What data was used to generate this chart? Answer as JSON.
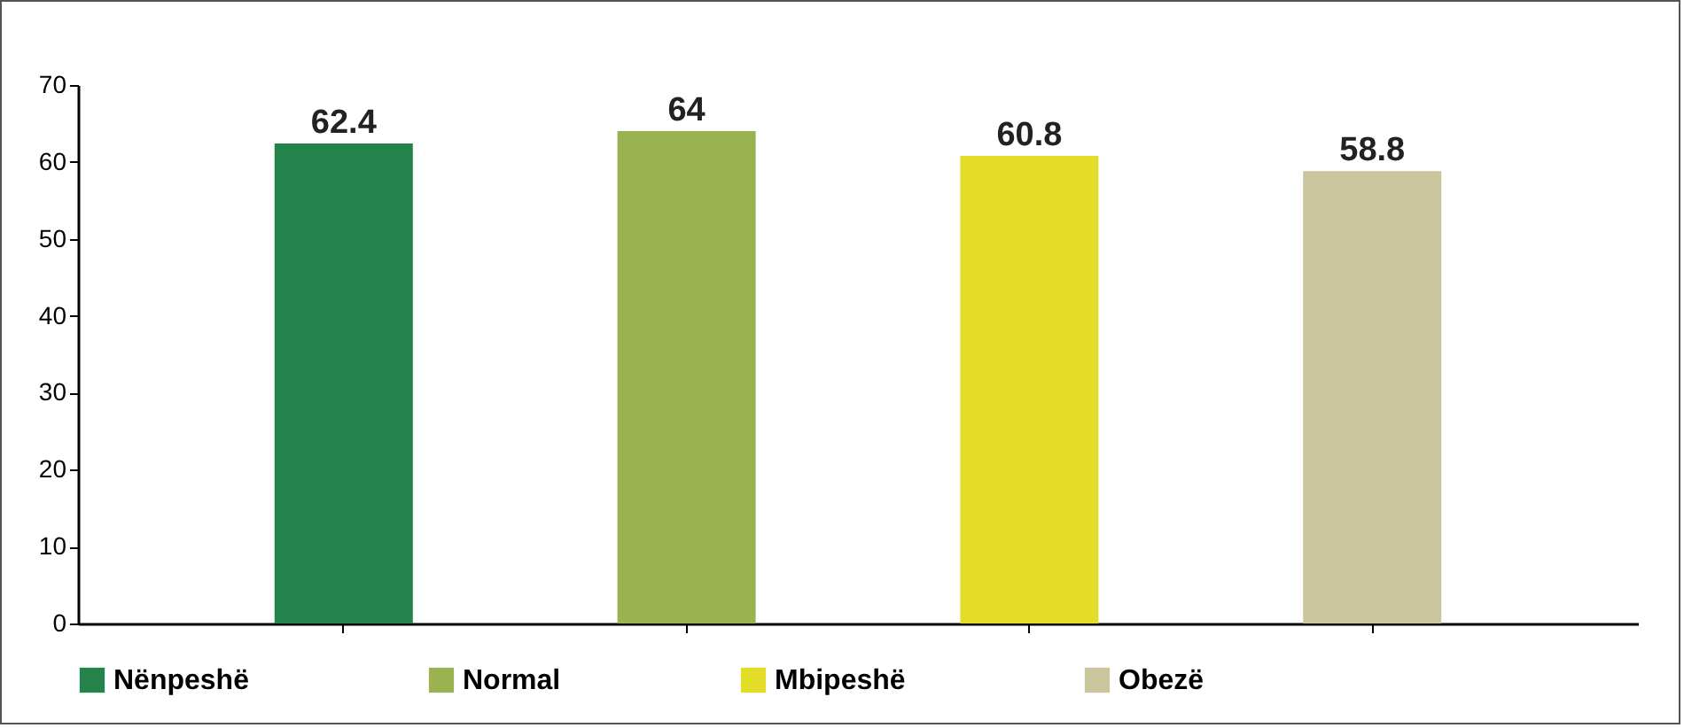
{
  "chart_data": {
    "type": "bar",
    "categories": [
      null,
      null,
      null,
      null
    ],
    "stacked": true,
    "series": [
      {
        "name": "Nënpeshë",
        "color": "#23834a",
        "values": [
          62.4,
          null,
          null,
          null
        ]
      },
      {
        "name": "Normal",
        "color": "#9ab350",
        "values": [
          null,
          64,
          null,
          null
        ]
      },
      {
        "name": "Mbipeshë",
        "color": "#e3dd2a",
        "values": [
          null,
          null,
          60.8,
          null
        ]
      },
      {
        "name": "Obezë",
        "color": "#cbc59d",
        "values": [
          null,
          null,
          null,
          58.8
        ]
      }
    ],
    "ylim": [
      0,
      70
    ],
    "yticks": [
      0,
      10,
      20,
      30,
      40,
      50,
      60,
      70
    ],
    "data_labels": true,
    "legend": "bottom",
    "tick_labels": "y",
    "grid": false
  }
}
